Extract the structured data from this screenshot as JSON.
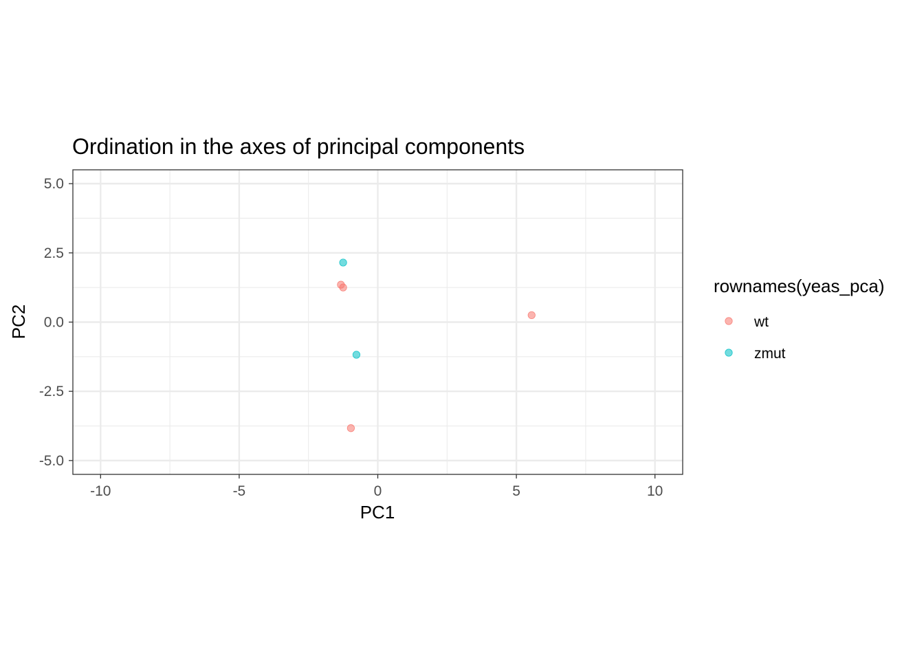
{
  "chart_data": {
    "type": "scatter",
    "title": "Ordination in the axes of principal components",
    "xlabel": "PC1",
    "ylabel": "PC2",
    "xlim": [
      -11,
      11
    ],
    "ylim": [
      -5.5,
      5.5
    ],
    "x_ticks": [
      -10,
      -5,
      0,
      5,
      10
    ],
    "x_tick_labels": [
      "-10",
      "-5",
      "0",
      "5",
      "10"
    ],
    "y_ticks": [
      -5.0,
      -2.5,
      0.0,
      2.5,
      5.0
    ],
    "y_tick_labels": [
      "-5.0",
      "-2.5",
      "0.0",
      "2.5",
      "5.0"
    ],
    "grid": true,
    "legend_title": "rownames(yeas_pca)",
    "legend_position": "right",
    "series": [
      {
        "name": "wt",
        "color": "#F8766D",
        "points": [
          {
            "x": -1.33,
            "y": 1.35
          },
          {
            "x": -1.25,
            "y": 1.25
          },
          {
            "x": 5.55,
            "y": 0.25
          },
          {
            "x": -0.97,
            "y": -3.83
          }
        ]
      },
      {
        "name": "zmut",
        "color": "#00BFC4",
        "points": [
          {
            "x": -1.25,
            "y": 2.15
          },
          {
            "x": -0.77,
            "y": -1.18
          }
        ]
      }
    ]
  }
}
